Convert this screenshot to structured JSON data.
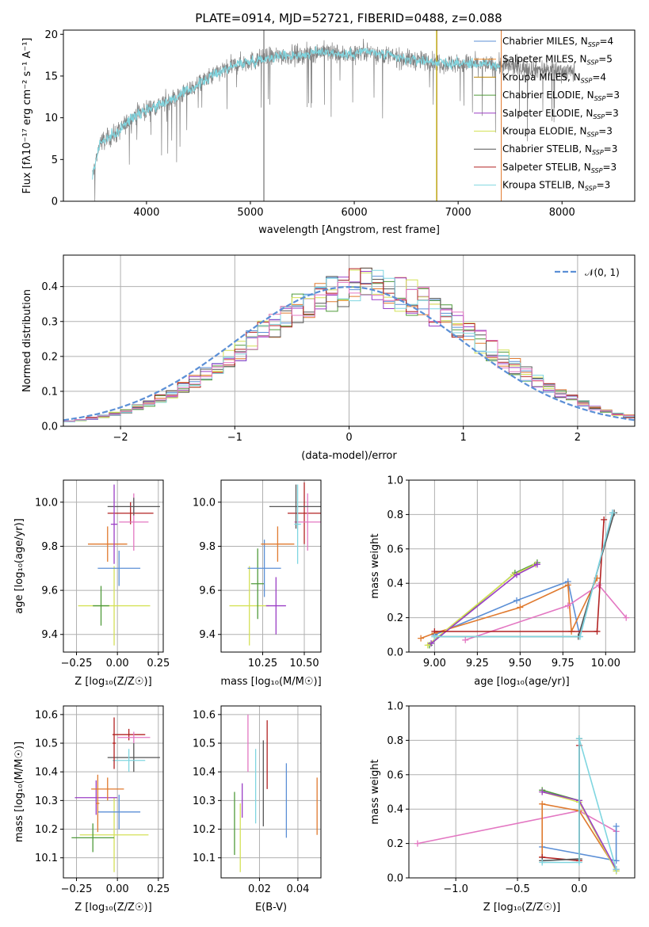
{
  "title": "PLATE=0914, MJD=52721, FIBERID=0488, z=0.088",
  "colors": {
    "chabrier_miles": "#5b8fd6",
    "salpeter_miles": "#f28e2b",
    "kroupa_miles": "#e07a2f",
    "chabrier_elodie": "#4f9a3a",
    "salpeter_elodie": "#9b3fc6",
    "kroupa_elodie": "#d4e157",
    "chabrier_stelib": "#555555",
    "salpeter_stelib": "#b22222",
    "kroupa_stelib": "#7fd6e0",
    "pink": "#e377c2",
    "data": "#808080",
    "normal": "#5b8fd6",
    "grid": "#b0b0b0"
  },
  "chart_data": [
    {
      "id": "spectrum",
      "type": "line",
      "xlabel": "wavelength [Angstrom, rest frame]",
      "ylabel": "Flux [f",
      "xlim": [
        3200,
        8700
      ],
      "ylim": [
        0,
        20.5
      ],
      "xticks": [
        "4000",
        "5000",
        "6000",
        "7000",
        "8000"
      ],
      "yticks": [
        "0",
        "5",
        "10",
        "15",
        "20"
      ],
      "continuum": [
        [
          3480,
          3
        ],
        [
          3550,
          7
        ],
        [
          3700,
          8
        ],
        [
          3900,
          10.5
        ],
        [
          4100,
          11.5
        ],
        [
          4300,
          12.5
        ],
        [
          4500,
          14
        ],
        [
          4700,
          15.5
        ],
        [
          4900,
          16.5
        ],
        [
          5100,
          17
        ],
        [
          5300,
          17.5
        ],
        [
          5500,
          17.5
        ],
        [
          5700,
          18
        ],
        [
          5900,
          17.5
        ],
        [
          6100,
          18
        ],
        [
          6300,
          17.5
        ],
        [
          6500,
          17
        ],
        [
          6700,
          16.8
        ],
        [
          6900,
          16.5
        ],
        [
          7100,
          16.5
        ],
        [
          7300,
          16.3
        ],
        [
          7450,
          16.2
        ],
        [
          7600,
          16.0
        ],
        [
          8000,
          15.6
        ],
        [
          8100,
          15.5
        ]
      ],
      "legend": [
        {
          "label": "Chabrier MILES, N",
          "sub": "SSP",
          "suffix": "=4",
          "color": "#5b8fd6"
        },
        {
          "label": "Salpeter MILES, N",
          "sub": "SSP",
          "suffix": "=5",
          "color": "#f28e2b"
        },
        {
          "label": "Kroupa MILES, N",
          "sub": "SSP",
          "suffix": "=4",
          "color": "#b8860b"
        },
        {
          "label": "Chabrier ELODIE, N",
          "sub": "SSP",
          "suffix": "=3",
          "color": "#4f9a3a"
        },
        {
          "label": "Salpeter ELODIE, N",
          "sub": "SSP",
          "suffix": "=3",
          "color": "#9b3fc6"
        },
        {
          "label": "Kroupa ELODIE, N",
          "sub": "SSP",
          "suffix": "=3",
          "color": "#d4e157"
        },
        {
          "label": "Chabrier STELIB, N",
          "sub": "SSP",
          "suffix": "=3",
          "color": "#555555"
        },
        {
          "label": "Salpeter STELIB, N",
          "sub": "SSP",
          "suffix": "=3",
          "color": "#b22222"
        },
        {
          "label": "Kroupa STELIB, N",
          "sub": "SSP",
          "suffix": "=3",
          "color": "#7fd6e0"
        }
      ]
    },
    {
      "id": "residuals",
      "type": "histogram",
      "xlabel": "(data-model)/error",
      "ylabel": "Normed distribution",
      "xlim": [
        -2.5,
        2.5
      ],
      "ylim": [
        0,
        0.49
      ],
      "xticks": [
        "−2",
        "−1",
        "0",
        "1",
        "2"
      ],
      "yticks": [
        "0.0",
        "0.1",
        "0.2",
        "0.3",
        "0.4"
      ],
      "legend_label": "𝒩(0, 1)",
      "bin_width": 0.1
    },
    {
      "id": "age_vs_Z",
      "type": "scatter",
      "xlabel": "Z [log",
      "ylabel": "age  [log",
      "xlim": [
        -0.33,
        0.28
      ],
      "ylim": [
        9.32,
        10.1
      ],
      "xticks": [
        "−0.25",
        "0.00",
        "0.25"
      ],
      "yticks": [
        "9.4",
        "9.6",
        "9.8",
        "10.0"
      ],
      "points": [
        {
          "x": -0.02,
          "y": 9.53,
          "xerr": 0.22,
          "yerr": 0.18,
          "color": "#d4e157"
        },
        {
          "x": -0.1,
          "y": 9.53,
          "xerr": 0.05,
          "yerr": 0.09,
          "color": "#4f9a3a"
        },
        {
          "x": 0.01,
          "y": 9.7,
          "xerr": 0.13,
          "yerr": 0.08,
          "color": "#5b8fd6"
        },
        {
          "x": -0.06,
          "y": 9.81,
          "xerr": 0.12,
          "yerr": 0.08,
          "color": "#e07a2f"
        },
        {
          "x": 0.08,
          "y": 9.95,
          "xerr": 0.14,
          "yerr": 0.05,
          "color": "#b22222"
        },
        {
          "x": 0.1,
          "y": 9.91,
          "xerr": 0.09,
          "yerr": 0.13,
          "color": "#e377c2"
        },
        {
          "x": 0.1,
          "y": 9.98,
          "xerr": 0.16,
          "yerr": 0.04,
          "color": "#555555"
        },
        {
          "x": -0.02,
          "y": 9.9,
          "xerr": 0.02,
          "yerr": 0.18,
          "color": "#9b3fc6"
        }
      ]
    },
    {
      "id": "age_vs_mass",
      "type": "scatter",
      "xlabel": "mass [log",
      "ylabel": "",
      "xlim": [
        10.0,
        10.6
      ],
      "ylim": [
        9.32,
        10.1
      ],
      "xticks": [
        "10.25",
        "10.50"
      ],
      "yticks": [
        "9.4",
        "9.6",
        "9.8",
        "10.0"
      ],
      "points": [
        {
          "x": 10.17,
          "y": 9.53,
          "xerr": 0.12,
          "yerr": 0.18,
          "color": "#d4e157"
        },
        {
          "x": 10.22,
          "y": 9.63,
          "xerr": 0.04,
          "yerr": 0.16,
          "color": "#4f9a3a"
        },
        {
          "x": 10.33,
          "y": 9.53,
          "xerr": 0.06,
          "yerr": 0.13,
          "color": "#9b3fc6"
        },
        {
          "x": 10.26,
          "y": 9.7,
          "xerr": 0.1,
          "yerr": 0.13,
          "color": "#5b8fd6"
        },
        {
          "x": 10.34,
          "y": 9.81,
          "xerr": 0.1,
          "yerr": 0.08,
          "color": "#e07a2f"
        },
        {
          "x": 10.5,
          "y": 9.95,
          "xerr": 0.1,
          "yerr": 0.14,
          "color": "#b22222"
        },
        {
          "x": 10.52,
          "y": 9.91,
          "xerr": 0.08,
          "yerr": 0.13,
          "color": "#e377c2"
        },
        {
          "x": 10.45,
          "y": 9.98,
          "xerr": 0.16,
          "yerr": 0.1,
          "color": "#555555"
        },
        {
          "x": 10.46,
          "y": 9.9,
          "xerr": 0.02,
          "yerr": 0.18,
          "color": "#7fd6e0"
        }
      ]
    },
    {
      "id": "weights_vs_age",
      "type": "line",
      "xlabel": "age  [log",
      "ylabel": "mass weight",
      "xlim": [
        8.85,
        10.17
      ],
      "ylim": [
        0,
        1
      ],
      "xticks": [
        "9.00",
        "9.25",
        "9.50",
        "9.75",
        "10.00"
      ],
      "yticks": [
        "0.0",
        "0.2",
        "0.4",
        "0.6",
        "0.8",
        "1.0"
      ],
      "series": [
        {
          "color": "#5b8fd6",
          "points": [
            [
              9.0,
              0.1
            ],
            [
              9.48,
              0.3
            ],
            [
              9.78,
              0.41
            ],
            [
              9.85,
              0.09
            ],
            [
              10.04,
              0.81
            ]
          ]
        },
        {
          "color": "#e07a2f",
          "points": [
            [
              8.92,
              0.08
            ],
            [
              9.0,
              0.11
            ],
            [
              9.5,
              0.26
            ],
            [
              9.78,
              0.39
            ],
            [
              9.8,
              0.12
            ],
            [
              9.95,
              0.43
            ]
          ]
        },
        {
          "color": "#e377c2",
          "points": [
            [
              9.18,
              0.07
            ],
            [
              9.78,
              0.27
            ],
            [
              9.96,
              0.39
            ],
            [
              10.12,
              0.2
            ]
          ]
        },
        {
          "color": "#4f9a3a",
          "points": [
            [
              8.97,
              0.04
            ],
            [
              9.47,
              0.46
            ],
            [
              9.6,
              0.52
            ]
          ]
        },
        {
          "color": "#d4e157",
          "points": [
            [
              8.96,
              0.04
            ],
            [
              9.46,
              0.45
            ],
            [
              9.59,
              0.51
            ]
          ]
        },
        {
          "color": "#9b3fc6",
          "points": [
            [
              8.98,
              0.05
            ],
            [
              9.48,
              0.45
            ],
            [
              9.6,
              0.51
            ]
          ]
        },
        {
          "color": "#555555",
          "points": [
            [
              9.0,
              0.09
            ],
            [
              9.84,
              0.09
            ],
            [
              10.05,
              0.81
            ]
          ]
        },
        {
          "color": "#b22222",
          "points": [
            [
              9.0,
              0.12
            ],
            [
              9.95,
              0.12
            ],
            [
              9.99,
              0.77
            ]
          ]
        },
        {
          "color": "#7fd6e0",
          "points": [
            [
              9.0,
              0.09
            ],
            [
              9.85,
              0.09
            ],
            [
              10.04,
              0.81
            ]
          ]
        }
      ]
    },
    {
      "id": "mass_vs_Z",
      "type": "scatter",
      "xlabel": "Z [log",
      "ylabel": "mass [log",
      "xlim": [
        -0.33,
        0.28
      ],
      "ylim": [
        10.03,
        10.63
      ],
      "xticks": [
        "−0.25",
        "0.00",
        "0.25"
      ],
      "yticks": [
        "10.1",
        "10.2",
        "10.3",
        "10.4",
        "10.5",
        "10.6"
      ],
      "points": [
        {
          "x": -0.02,
          "y": 10.18,
          "xerr": 0.21,
          "yerr": 0.13,
          "color": "#d4e157"
        },
        {
          "x": -0.15,
          "y": 10.17,
          "xerr": 0.13,
          "yerr": 0.05,
          "color": "#4f9a3a"
        },
        {
          "x": -0.13,
          "y": 10.31,
          "xerr": 0.13,
          "yerr": 0.06,
          "color": "#9b3fc6"
        },
        {
          "x": 0.01,
          "y": 10.26,
          "xerr": 0.13,
          "yerr": 0.06,
          "color": "#5b8fd6"
        },
        {
          "x": -0.06,
          "y": 10.34,
          "xerr": 0.1,
          "yerr": 0.04,
          "color": "#e07a2f"
        },
        {
          "x": 0.07,
          "y": 10.53,
          "xerr": 0.1,
          "yerr": 0.02,
          "color": "#b22222"
        },
        {
          "x": 0.1,
          "y": 10.52,
          "xerr": 0.1,
          "yerr": 0.02,
          "color": "#e377c2"
        },
        {
          "x": 0.1,
          "y": 10.45,
          "xerr": 0.16,
          "yerr": 0.05,
          "color": "#555555"
        },
        {
          "x": 0.07,
          "y": 10.44,
          "xerr": 0.1,
          "yerr": 0.04,
          "color": "#7fd6e0"
        },
        {
          "x": -0.02,
          "y": 10.5,
          "xerr": 0.01,
          "yerr": 0.09,
          "color": "#b22222"
        },
        {
          "x": -0.12,
          "y": 10.29,
          "xerr": 0.01,
          "yerr": 0.1,
          "color": "#e07a2f"
        }
      ]
    },
    {
      "id": "mass_vs_EBV",
      "type": "scatter",
      "xlabel": "E(B-V)",
      "ylabel": "",
      "xlim": [
        0.0,
        0.052
      ],
      "ylim": [
        10.03,
        10.63
      ],
      "xticks": [
        "0.02",
        "0.04"
      ],
      "yticks": [
        "10.1",
        "10.2",
        "10.3",
        "10.4",
        "10.5",
        "10.6"
      ],
      "points": [
        {
          "x": 0.007,
          "y": 10.22,
          "yerr": 0.11,
          "color": "#4f9a3a"
        },
        {
          "x": 0.01,
          "y": 10.17,
          "yerr": 0.12,
          "color": "#d4e157"
        },
        {
          "x": 0.011,
          "y": 10.3,
          "yerr": 0.06,
          "color": "#9b3fc6"
        },
        {
          "x": 0.014,
          "y": 10.5,
          "yerr": 0.1,
          "color": "#e377c2"
        },
        {
          "x": 0.018,
          "y": 10.35,
          "yerr": 0.13,
          "color": "#7fd6e0"
        },
        {
          "x": 0.022,
          "y": 10.36,
          "yerr": 0.15,
          "color": "#555555"
        },
        {
          "x": 0.024,
          "y": 10.46,
          "yerr": 0.12,
          "color": "#b22222"
        },
        {
          "x": 0.034,
          "y": 10.3,
          "yerr": 0.13,
          "color": "#5b8fd6"
        },
        {
          "x": 0.05,
          "y": 10.28,
          "yerr": 0.1,
          "color": "#e07a2f"
        }
      ]
    },
    {
      "id": "weights_vs_Z",
      "type": "line",
      "xlabel": "Z [log",
      "ylabel": "mass weight",
      "xlim": [
        -1.38,
        0.45
      ],
      "ylim": [
        0,
        1
      ],
      "xticks": [
        "−1.0",
        "−0.5",
        "0.0"
      ],
      "yticks": [
        "0.0",
        "0.2",
        "0.4",
        "0.6",
        "0.8",
        "1.0"
      ],
      "series": [
        {
          "color": "#e377c2",
          "points": [
            [
              -1.31,
              0.2
            ],
            [
              0.0,
              0.39
            ],
            [
              0.3,
              0.27
            ]
          ]
        },
        {
          "color": "#5b8fd6",
          "points": [
            [
              -0.3,
              0.18
            ],
            [
              0.3,
              0.1
            ],
            [
              0.3,
              0.3
            ]
          ]
        },
        {
          "color": "#e07a2f",
          "points": [
            [
              -0.3,
              0.12
            ],
            [
              -0.3,
              0.43
            ],
            [
              0.0,
              0.39
            ],
            [
              0.3,
              0.05
            ]
          ]
        },
        {
          "color": "#4f9a3a",
          "points": [
            [
              -0.3,
              0.51
            ],
            [
              0.0,
              0.45
            ],
            [
              0.3,
              0.04
            ]
          ]
        },
        {
          "color": "#d4e157",
          "points": [
            [
              -0.3,
              0.5
            ],
            [
              0.0,
              0.44
            ],
            [
              0.3,
              0.04
            ]
          ]
        },
        {
          "color": "#9b3fc6",
          "points": [
            [
              -0.3,
              0.5
            ],
            [
              0.0,
              0.45
            ],
            [
              0.3,
              0.05
            ]
          ]
        },
        {
          "color": "#b22222",
          "points": [
            [
              -0.3,
              0.12
            ],
            [
              0.0,
              0.1
            ],
            [
              0.0,
              0.77
            ]
          ]
        },
        {
          "color": "#555555",
          "points": [
            [
              -0.3,
              0.1
            ],
            [
              0.0,
              0.11
            ],
            [
              0.0,
              0.81
            ]
          ]
        },
        {
          "color": "#7fd6e0",
          "points": [
            [
              -0.3,
              0.09
            ],
            [
              0.0,
              0.09
            ],
            [
              0.0,
              0.81
            ],
            [
              0.3,
              0.05
            ]
          ]
        }
      ]
    }
  ]
}
